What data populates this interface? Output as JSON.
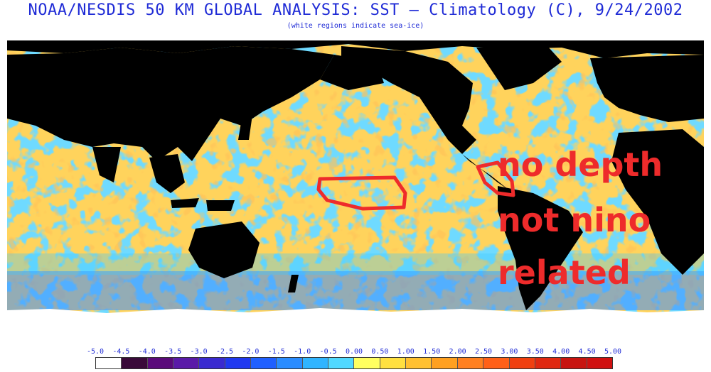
{
  "header": {
    "title": "NOAA/NESDIS 50 KM GLOBAL ANALYSIS: SST — Climatology (C), 9/24/2002",
    "subtitle": "(white regions indicate sea-ice)"
  },
  "annotation": {
    "line1": "no depth",
    "line2": "not nino",
    "line3": "related",
    "color": "#ee2b2b"
  },
  "legend": {
    "labels": [
      "-5.0",
      "-4.5",
      "-4.0",
      "-3.5",
      "-3.0",
      "-2.5",
      "-2.0",
      "-1.5",
      "-1.0",
      "-0.5",
      "0.00",
      "0.50",
      "1.00",
      "1.50",
      "2.00",
      "2.50",
      "3.00",
      "3.50",
      "4.00",
      "4.50",
      "5.00"
    ],
    "colors": [
      "#ffffff",
      "#3a0a3a",
      "#5a0a7a",
      "#5a1aa8",
      "#3a2ad0",
      "#2038f0",
      "#2060ff",
      "#2a8cff",
      "#30b4ff",
      "#50d8ff",
      "#ffff60",
      "#ffe040",
      "#ffc030",
      "#ffa020",
      "#ff8020",
      "#ff6018",
      "#f04010",
      "#e02810",
      "#c81410",
      "#d01010"
    ]
  },
  "map": {
    "ocean_base_color": "#ffcf5a",
    "land_color": "#000000",
    "ice_color": "#ffffff"
  }
}
